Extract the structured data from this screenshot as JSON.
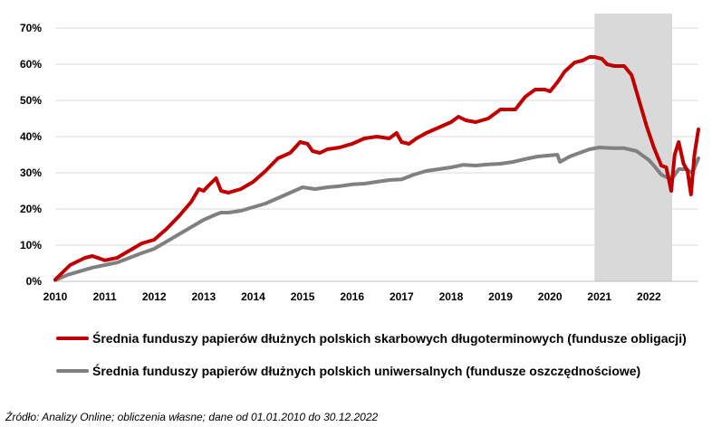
{
  "chart_data": {
    "type": "line",
    "xlim": [
      2010,
      2023
    ],
    "ylim": [
      0,
      70
    ],
    "y_ticks": [
      "0%",
      "10%",
      "20%",
      "30%",
      "40%",
      "50%",
      "60%",
      "70%"
    ],
    "y_tick_values": [
      0,
      10,
      20,
      30,
      40,
      50,
      60,
      70
    ],
    "x_ticks": [
      "2010",
      "2011",
      "2012",
      "2013",
      "2014",
      "2015",
      "2016",
      "2017",
      "2018",
      "2019",
      "2020",
      "2021",
      "2022"
    ],
    "x_tick_values": [
      2010,
      2011,
      2012,
      2013,
      2014,
      2015,
      2016,
      2017,
      2018,
      2019,
      2020,
      2021,
      2022
    ],
    "grid": "horizontal",
    "legend_position": "bottom",
    "shaded_region": {
      "x_start": 2020.9,
      "x_end": 2022.47,
      "color": "#d9d9d9"
    },
    "series": [
      {
        "name": "Średnia funduszy papierów dłużnych polskich skarbowych długoterminowych (fundusze obligacji)",
        "color": "#c00000",
        "points": [
          [
            2010.0,
            0.5
          ],
          [
            2010.15,
            2.5
          ],
          [
            2010.3,
            4.5
          ],
          [
            2010.45,
            5.5
          ],
          [
            2010.6,
            6.5
          ],
          [
            2010.75,
            7.0
          ],
          [
            2010.9,
            6.3
          ],
          [
            2011.0,
            5.8
          ],
          [
            2011.25,
            6.5
          ],
          [
            2011.5,
            8.5
          ],
          [
            2011.75,
            10.5
          ],
          [
            2012.0,
            11.5
          ],
          [
            2012.25,
            14.5
          ],
          [
            2012.5,
            18.0
          ],
          [
            2012.75,
            22.0
          ],
          [
            2012.9,
            25.5
          ],
          [
            2013.0,
            25.0
          ],
          [
            2013.1,
            26.5
          ],
          [
            2013.25,
            28.5
          ],
          [
            2013.35,
            25.0
          ],
          [
            2013.5,
            24.5
          ],
          [
            2013.75,
            25.5
          ],
          [
            2014.0,
            27.5
          ],
          [
            2014.25,
            30.5
          ],
          [
            2014.5,
            34.0
          ],
          [
            2014.75,
            35.5
          ],
          [
            2014.95,
            38.5
          ],
          [
            2015.1,
            38.0
          ],
          [
            2015.2,
            36.0
          ],
          [
            2015.35,
            35.5
          ],
          [
            2015.5,
            36.5
          ],
          [
            2015.75,
            37.0
          ],
          [
            2016.0,
            38.0
          ],
          [
            2016.25,
            39.5
          ],
          [
            2016.5,
            40.0
          ],
          [
            2016.75,
            39.5
          ],
          [
            2016.9,
            41.0
          ],
          [
            2017.0,
            38.5
          ],
          [
            2017.15,
            38.0
          ],
          [
            2017.3,
            39.5
          ],
          [
            2017.5,
            41.0
          ],
          [
            2017.75,
            42.5
          ],
          [
            2018.0,
            44.0
          ],
          [
            2018.15,
            45.5
          ],
          [
            2018.3,
            44.5
          ],
          [
            2018.5,
            44.0
          ],
          [
            2018.75,
            45.0
          ],
          [
            2019.0,
            47.5
          ],
          [
            2019.15,
            47.5
          ],
          [
            2019.3,
            47.5
          ],
          [
            2019.5,
            51.0
          ],
          [
            2019.7,
            53.0
          ],
          [
            2019.9,
            53.0
          ],
          [
            2020.0,
            52.5
          ],
          [
            2020.15,
            55.0
          ],
          [
            2020.3,
            58.0
          ],
          [
            2020.5,
            60.5
          ],
          [
            2020.65,
            61.0
          ],
          [
            2020.8,
            62.0
          ],
          [
            2020.9,
            62.0
          ],
          [
            2021.05,
            61.5
          ],
          [
            2021.15,
            60.0
          ],
          [
            2021.3,
            59.5
          ],
          [
            2021.5,
            59.5
          ],
          [
            2021.65,
            57.0
          ],
          [
            2021.8,
            50.0
          ],
          [
            2021.95,
            43.0
          ],
          [
            2022.1,
            37.0
          ],
          [
            2022.25,
            32.0
          ],
          [
            2022.35,
            31.5
          ],
          [
            2022.45,
            25.0
          ],
          [
            2022.52,
            35.0
          ],
          [
            2022.6,
            38.5
          ],
          [
            2022.7,
            32.5
          ],
          [
            2022.78,
            30.5
          ],
          [
            2022.85,
            24.0
          ],
          [
            2022.92,
            35.0
          ],
          [
            2023.0,
            42.0
          ]
        ]
      },
      {
        "name": "Średnia funduszy papierów dłużnych polskich uniwersalnych (fundusze oszczędnościowe)",
        "color": "#808080",
        "points": [
          [
            2010.0,
            0.3
          ],
          [
            2010.25,
            1.8
          ],
          [
            2010.5,
            2.8
          ],
          [
            2010.75,
            3.8
          ],
          [
            2011.0,
            4.5
          ],
          [
            2011.25,
            5.2
          ],
          [
            2011.5,
            6.5
          ],
          [
            2011.75,
            7.8
          ],
          [
            2012.0,
            9.0
          ],
          [
            2012.25,
            11.0
          ],
          [
            2012.5,
            13.0
          ],
          [
            2012.75,
            15.0
          ],
          [
            2013.0,
            17.0
          ],
          [
            2013.25,
            18.5
          ],
          [
            2013.35,
            19.0
          ],
          [
            2013.5,
            19.0
          ],
          [
            2013.75,
            19.5
          ],
          [
            2014.0,
            20.5
          ],
          [
            2014.25,
            21.5
          ],
          [
            2014.5,
            23.0
          ],
          [
            2014.75,
            24.5
          ],
          [
            2015.0,
            26.0
          ],
          [
            2015.25,
            25.5
          ],
          [
            2015.5,
            26.0
          ],
          [
            2015.75,
            26.3
          ],
          [
            2016.0,
            26.8
          ],
          [
            2016.25,
            27.0
          ],
          [
            2016.5,
            27.5
          ],
          [
            2016.75,
            28.0
          ],
          [
            2017.0,
            28.2
          ],
          [
            2017.25,
            29.5
          ],
          [
            2017.5,
            30.5
          ],
          [
            2017.75,
            31.0
          ],
          [
            2018.0,
            31.5
          ],
          [
            2018.25,
            32.2
          ],
          [
            2018.5,
            32.0
          ],
          [
            2018.75,
            32.3
          ],
          [
            2019.0,
            32.5
          ],
          [
            2019.25,
            33.0
          ],
          [
            2019.5,
            33.8
          ],
          [
            2019.75,
            34.5
          ],
          [
            2020.0,
            34.8
          ],
          [
            2020.15,
            35.0
          ],
          [
            2020.2,
            33.0
          ],
          [
            2020.4,
            34.5
          ],
          [
            2020.6,
            35.5
          ],
          [
            2020.8,
            36.5
          ],
          [
            2021.0,
            37.0
          ],
          [
            2021.25,
            36.8
          ],
          [
            2021.5,
            36.8
          ],
          [
            2021.75,
            36.0
          ],
          [
            2021.9,
            34.5
          ],
          [
            2022.0,
            33.5
          ],
          [
            2022.1,
            32.0
          ],
          [
            2022.25,
            29.5
          ],
          [
            2022.4,
            28.5
          ],
          [
            2022.5,
            29.0
          ],
          [
            2022.6,
            31.0
          ],
          [
            2022.75,
            31.0
          ],
          [
            2022.88,
            30.0
          ],
          [
            2023.0,
            34.0
          ]
        ]
      }
    ]
  },
  "source_note": "Źródło: Analizy Online; obliczenia własne; dane od 01.01.2010 do 30.12.2022"
}
